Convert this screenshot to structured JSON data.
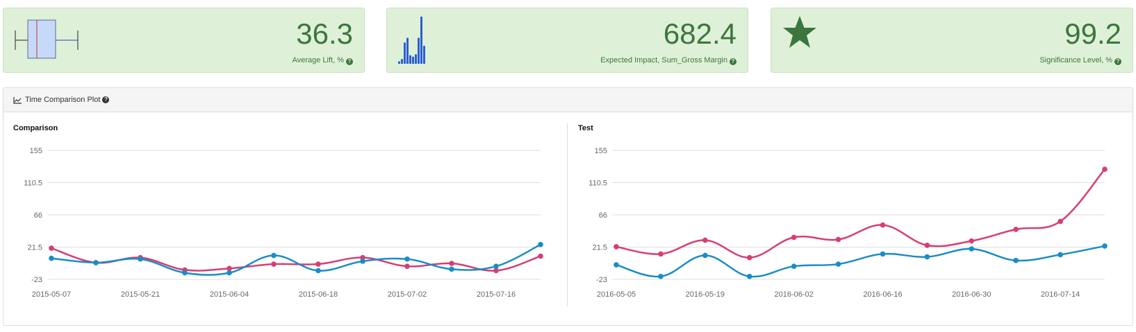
{
  "kpis": [
    {
      "value": "36.3",
      "label": "Average Lift, %",
      "icon": "box-plot-icon"
    },
    {
      "value": "682.4",
      "label": "Expected Impact, Sum_Gross Margin",
      "icon": "histogram-icon"
    },
    {
      "value": "99.2",
      "label": "Significance Level, %",
      "icon": "star-icon"
    }
  ],
  "panel": {
    "title": "Time Comparison Plot",
    "icon": "line-chart-icon"
  },
  "colors": {
    "pink": "#d63e72",
    "blue": "#1a8cc8",
    "kpi_text": "#3c763d"
  },
  "histogram_values": [
    0.05,
    0.1,
    0.45,
    0.55,
    0.18,
    0.15,
    0.2,
    0.55,
    1.0,
    0.38
  ],
  "chart_data": [
    {
      "type": "line",
      "title": "Comparison",
      "x": [
        "2015-05-07",
        "2015-05-14",
        "2015-05-21",
        "2015-05-28",
        "2015-06-04",
        "2015-06-11",
        "2015-06-18",
        "2015-06-25",
        "2015-07-02",
        "2015-07-09",
        "2015-07-16",
        "2015-07-23"
      ],
      "x_ticks": [
        "2015-05-07",
        "2015-05-21",
        "2015-06-04",
        "2015-06-18",
        "2015-07-02",
        "2015-07-16"
      ],
      "y_ticks": [
        "155",
        "110.5",
        "66",
        "21.5",
        "-23"
      ],
      "ylim": [
        -23,
        155
      ],
      "grid": true,
      "series": [
        {
          "color": "#d63e72",
          "values": [
            20,
            0,
            7,
            -10,
            -8,
            -2,
            -2,
            7,
            -5,
            -1,
            -11,
            9
          ]
        },
        {
          "color": "#1a8cc8",
          "values": [
            6,
            0,
            5,
            -14,
            -14,
            10,
            -11,
            2,
            5,
            -9,
            -5,
            25
          ]
        }
      ]
    },
    {
      "type": "line",
      "title": "Test",
      "x": [
        "2016-05-05",
        "2016-05-12",
        "2016-05-19",
        "2016-05-26",
        "2016-06-02",
        "2016-06-09",
        "2016-06-16",
        "2016-06-23",
        "2016-06-30",
        "2016-07-07",
        "2016-07-14",
        "2016-07-21"
      ],
      "x_ticks": [
        "2016-05-05",
        "2016-05-19",
        "2016-06-02",
        "2016-06-16",
        "2016-06-30",
        "2016-07-14"
      ],
      "y_ticks": [
        "155",
        "110.5",
        "66",
        "21.5",
        "-23"
      ],
      "ylim": [
        -23,
        155
      ],
      "grid": true,
      "series": [
        {
          "color": "#d63e72",
          "values": [
            22,
            12,
            31,
            7,
            35,
            32,
            52,
            24,
            30,
            46,
            57,
            129
          ]
        },
        {
          "color": "#1a8cc8",
          "values": [
            -3,
            -19,
            10,
            -19,
            -5,
            -2,
            12,
            8,
            19,
            3,
            11,
            23
          ]
        }
      ]
    }
  ]
}
